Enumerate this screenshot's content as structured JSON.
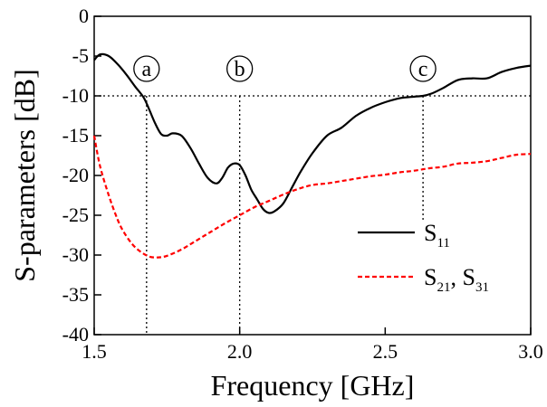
{
  "chart_data": {
    "type": "line",
    "xlabel": "Frequency [GHz]",
    "ylabel": "S-parameters [dB]",
    "xlim": [
      1.5,
      3.0
    ],
    "ylim": [
      -40,
      0
    ],
    "x_ticks": [
      1.5,
      2.0,
      2.5,
      3.0
    ],
    "x_tick_labels": [
      "1.5",
      "2.0",
      "2.5",
      "3.0"
    ],
    "y_ticks": [
      0,
      -5,
      -10,
      -15,
      -20,
      -25,
      -30,
      -35,
      -40
    ],
    "y_tick_labels": [
      "0",
      "-5",
      "-10",
      "-15",
      "-20",
      "-25",
      "-30",
      "-35",
      "-40"
    ],
    "grid": false,
    "legend_position": "right",
    "reference_line": {
      "y": -10,
      "style": "dotted"
    },
    "markers": [
      {
        "label": "a",
        "x": 1.68
      },
      {
        "label": "b",
        "x": 2.0
      },
      {
        "label": "c",
        "x": 2.63
      }
    ],
    "series": [
      {
        "name": "S11",
        "legend_main": "S",
        "legend_sub": "11",
        "color": "#000000",
        "style": "solid",
        "x": [
          1.5,
          1.52,
          1.55,
          1.58,
          1.61,
          1.64,
          1.67,
          1.69,
          1.71,
          1.73,
          1.75,
          1.77,
          1.8,
          1.83,
          1.86,
          1.89,
          1.92,
          1.94,
          1.96,
          1.98,
          2.0,
          2.02,
          2.04,
          2.06,
          2.08,
          2.1,
          2.12,
          2.15,
          2.18,
          2.21,
          2.25,
          2.3,
          2.35,
          2.4,
          2.45,
          2.5,
          2.55,
          2.6,
          2.63,
          2.66,
          2.7,
          2.75,
          2.8,
          2.85,
          2.9,
          2.95,
          3.0
        ],
        "values": [
          -5.5,
          -4.8,
          -5.0,
          -6.0,
          -7.3,
          -8.8,
          -10.2,
          -11.8,
          -13.5,
          -14.8,
          -15.0,
          -14.7,
          -15.0,
          -16.5,
          -18.5,
          -20.3,
          -21.0,
          -20.3,
          -19.0,
          -18.5,
          -18.7,
          -20.0,
          -21.8,
          -23.0,
          -24.2,
          -24.7,
          -24.5,
          -23.5,
          -21.5,
          -19.5,
          -17.2,
          -15.0,
          -14.0,
          -12.5,
          -11.5,
          -10.8,
          -10.3,
          -10.1,
          -10.0,
          -9.7,
          -9.0,
          -8.0,
          -7.8,
          -7.8,
          -7.0,
          -6.5,
          -6.2
        ]
      },
      {
        "name": "S21, S31",
        "legend_main": "S",
        "legend_sub": "21",
        "legend_sep": ", ",
        "legend_main2": "S",
        "legend_sub2": "31",
        "color": "#ff0000",
        "style": "dashed",
        "x": [
          1.5,
          1.52,
          1.55,
          1.58,
          1.6,
          1.63,
          1.66,
          1.69,
          1.72,
          1.75,
          1.8,
          1.85,
          1.9,
          1.95,
          2.0,
          2.05,
          2.1,
          2.15,
          2.2,
          2.25,
          2.3,
          2.35,
          2.4,
          2.45,
          2.5,
          2.55,
          2.6,
          2.65,
          2.7,
          2.75,
          2.8,
          2.85,
          2.9,
          2.95,
          3.0
        ],
        "values": [
          -15.0,
          -18.8,
          -22.5,
          -25.5,
          -27.0,
          -28.6,
          -29.6,
          -30.2,
          -30.3,
          -30.1,
          -29.3,
          -28.2,
          -27.1,
          -26.0,
          -25.0,
          -24.0,
          -23.2,
          -22.4,
          -21.7,
          -21.2,
          -21.0,
          -20.7,
          -20.4,
          -20.1,
          -19.9,
          -19.6,
          -19.4,
          -19.1,
          -18.9,
          -18.5,
          -18.4,
          -18.2,
          -17.8,
          -17.4,
          -17.3
        ]
      }
    ]
  }
}
